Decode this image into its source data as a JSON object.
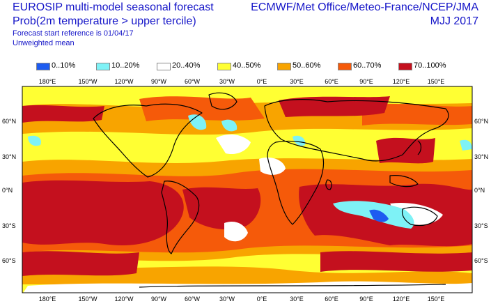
{
  "header": {
    "title": "EUROSIP multi-model seasonal forecast",
    "subtitle": "Prob(2m temperature > upper tercile)",
    "start_reference": "Forecast start reference is 01/04/17",
    "weighting": "Unweighted mean",
    "centres": "ECMWF/Met Office/Meteo-France/NCEP/JMA",
    "season": "MJJ 2017"
  },
  "legend": [
    {
      "label": "0..10%",
      "color": "#1e5cf0"
    },
    {
      "label": "10..20%",
      "color": "#7ef2f6"
    },
    {
      "label": "20..40%",
      "color": "#ffffff"
    },
    {
      "label": "40..50%",
      "color": "#ffff33"
    },
    {
      "label": "50..60%",
      "color": "#f8a400"
    },
    {
      "label": "60..70%",
      "color": "#f55a0a"
    },
    {
      "label": "70..100%",
      "color": "#c4101e"
    }
  ],
  "map": {
    "lon_labels_top": [
      "180°E",
      "150°W",
      "120°W",
      "90°W",
      "60°W",
      "30°W",
      "0°E",
      "30°E",
      "60°E",
      "90°E",
      "120°E",
      "150°E"
    ],
    "lon_labels_bottom": [
      "180°E",
      "150°W",
      "120°W",
      "90°W",
      "60°W",
      "30°W",
      "0°E",
      "30°E",
      "60°E",
      "90°E",
      "120°E",
      "150°E"
    ],
    "lat_labels_left": [
      "60°N",
      "30°N",
      "0°N",
      "30°S",
      "60°S"
    ],
    "lat_labels_right": [
      "60°N",
      "30°N",
      "0°N",
      "30°S",
      "60°S"
    ]
  }
}
